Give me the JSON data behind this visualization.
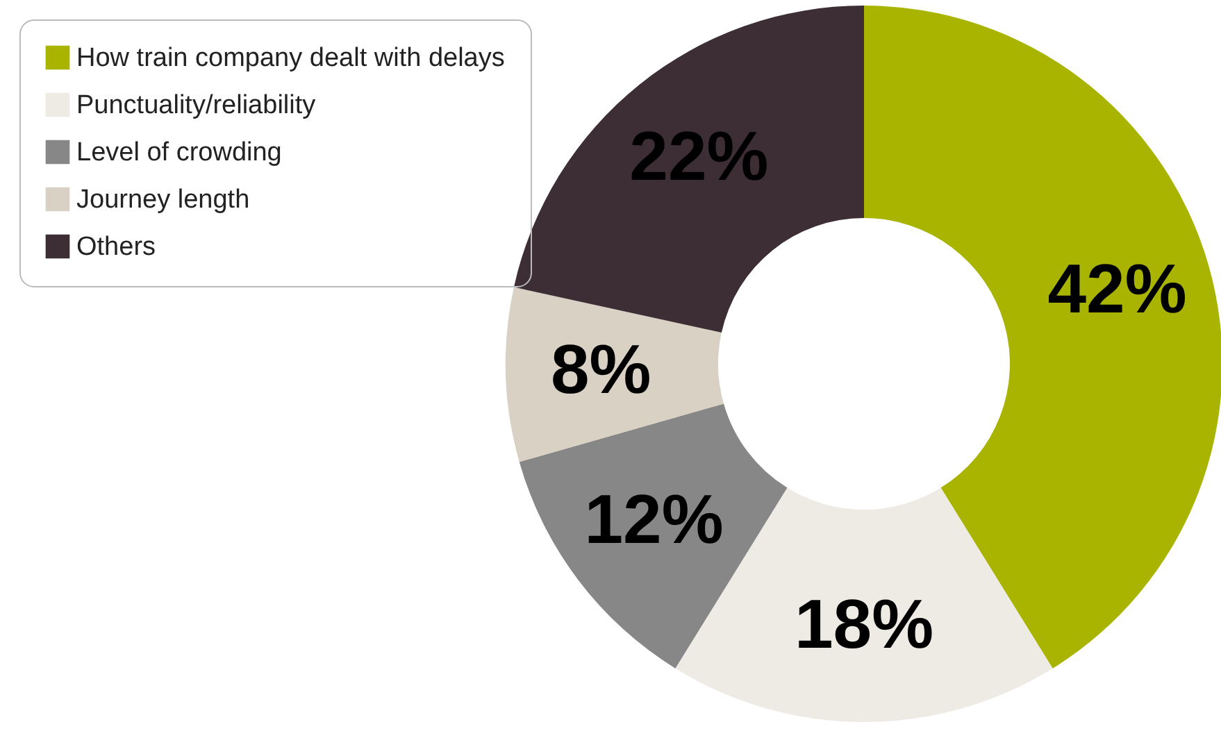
{
  "chart_data": {
    "type": "donut",
    "categories": [
      "How train company dealt with delays",
      "Punctuality/reliability",
      "Level of crowding",
      "Journey length",
      "Others"
    ],
    "values": [
      42,
      18,
      12,
      8,
      22
    ],
    "colors": [
      "#a9b400",
      "#eeebe4",
      "#878787",
      "#d9d1c3",
      "#3d2e35"
    ],
    "value_labels": [
      "42%",
      "18%",
      "12%",
      "8%",
      "22%"
    ],
    "legend": "top left"
  }
}
